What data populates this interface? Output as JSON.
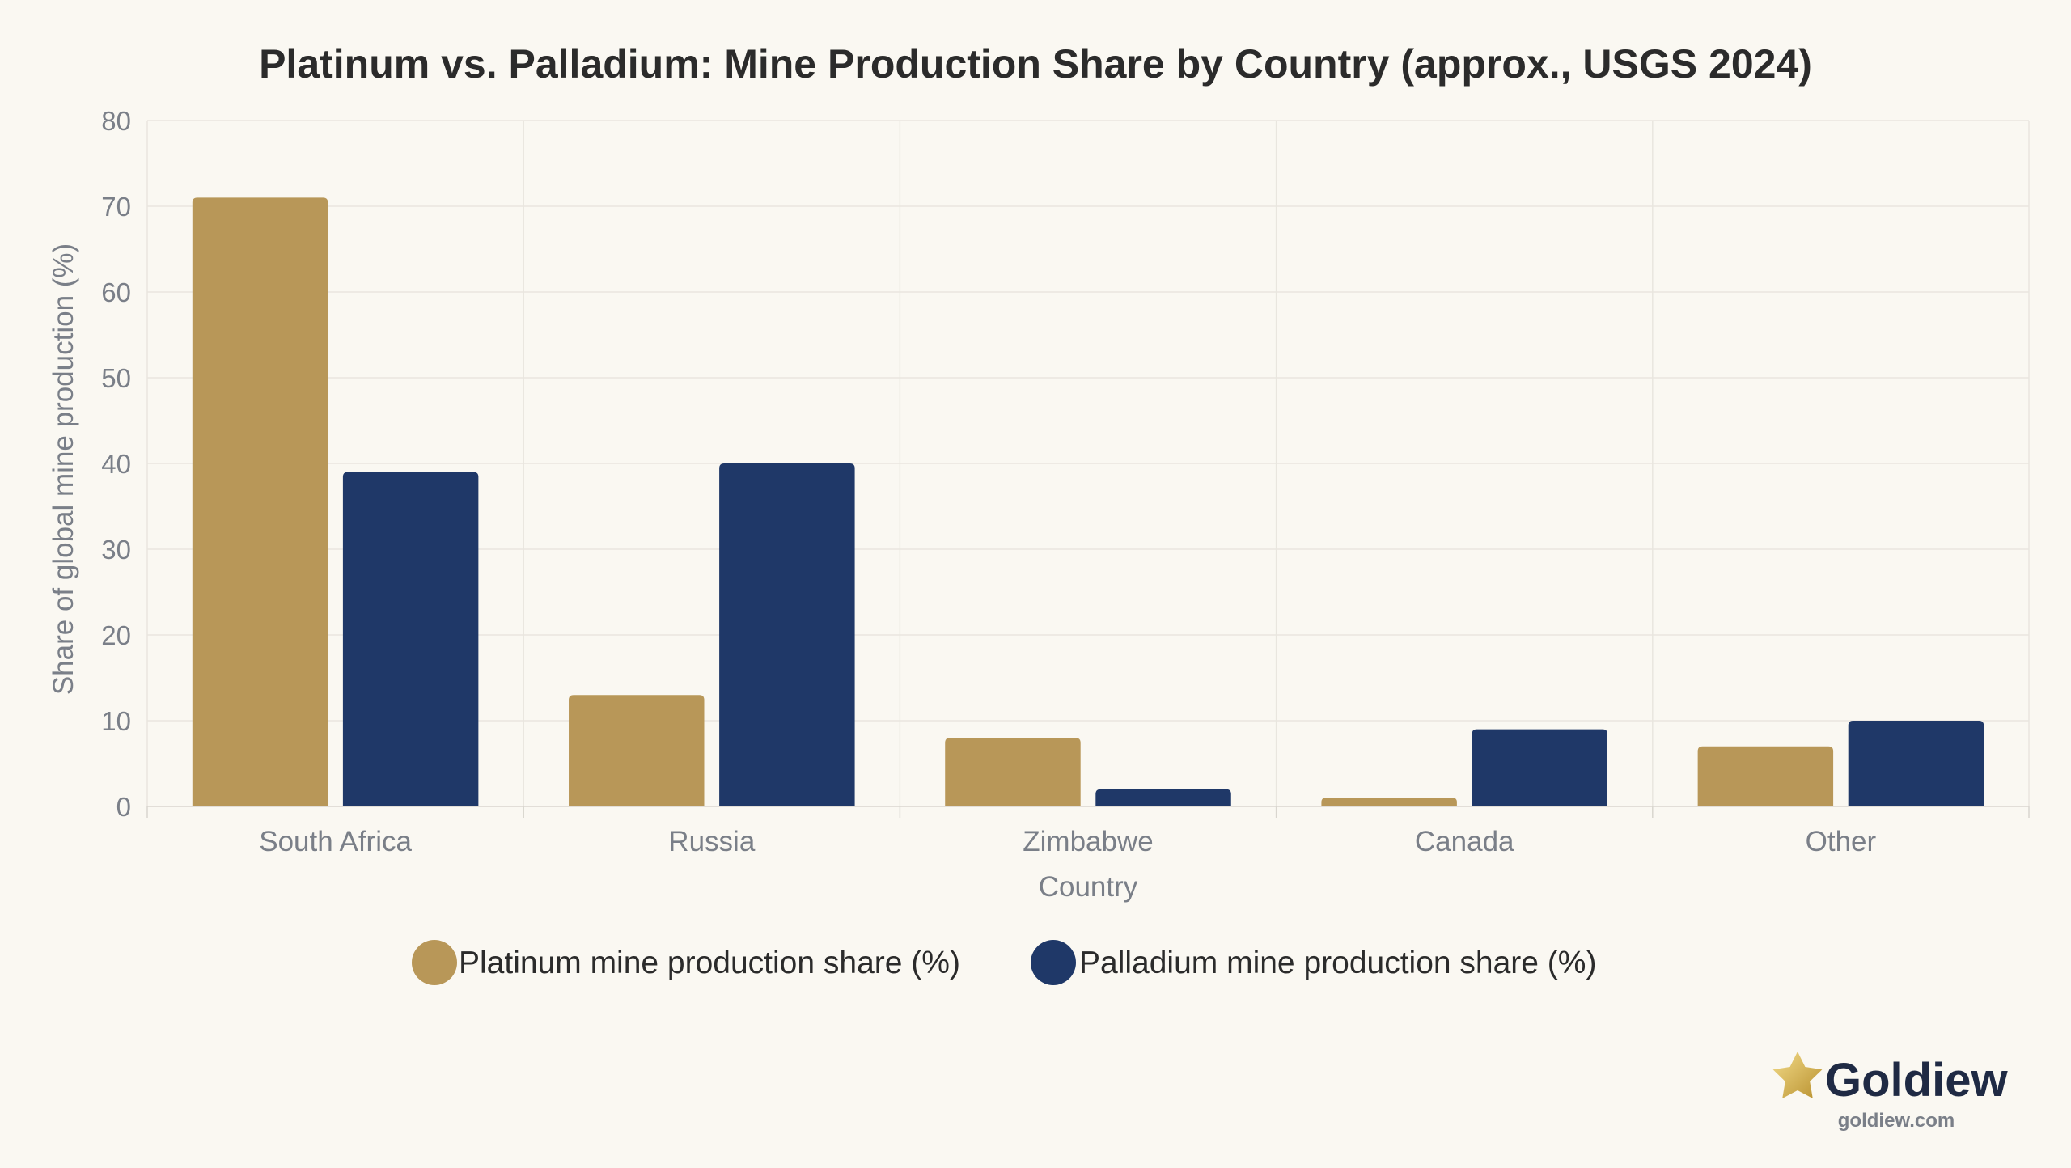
{
  "chart_data": {
    "type": "bar",
    "title": "Platinum vs. Palladium: Mine Production Share by Country (approx., USGS 2024)",
    "xlabel": "Country",
    "ylabel": "Share of global mine production (%)",
    "categories": [
      "South Africa",
      "Russia",
      "Zimbabwe",
      "Canada",
      "Other"
    ],
    "series": [
      {
        "name": "Platinum mine production share (%)",
        "values": [
          71,
          13,
          8,
          1,
          7
        ],
        "color": "#b89758"
      },
      {
        "name": "Palladium mine production share (%)",
        "values": [
          39,
          40,
          2,
          9,
          10
        ],
        "color": "#1f3868"
      }
    ],
    "ylim": [
      0,
      80
    ],
    "yticks": [
      0,
      10,
      20,
      30,
      40,
      50,
      60,
      70,
      80
    ],
    "grid": true,
    "legend_position": "bottom-center"
  },
  "brand": {
    "name": "Goldiew",
    "url": "goldiew.com",
    "icon": "star-icon",
    "icon_color": "#d4b24c"
  }
}
